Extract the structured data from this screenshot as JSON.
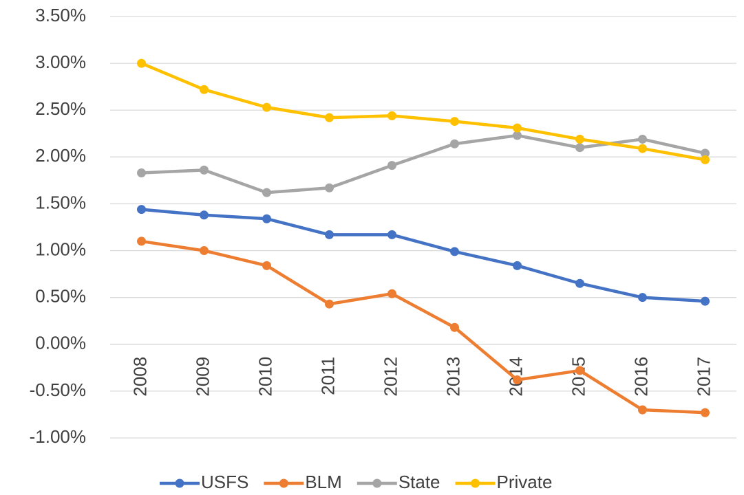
{
  "chart_data": {
    "type": "line",
    "categories": [
      "2008",
      "2009",
      "2010",
      "2011",
      "2012",
      "2013",
      "2014",
      "2015",
      "2016",
      "2017"
    ],
    "series": [
      {
        "name": "USFS",
        "color": "#4472c4",
        "values": [
          1.44,
          1.38,
          1.34,
          1.17,
          1.17,
          0.99,
          0.84,
          0.65,
          0.5,
          0.46
        ]
      },
      {
        "name": "BLM",
        "color": "#ed7d31",
        "values": [
          1.1,
          1.0,
          0.84,
          0.43,
          0.54,
          0.18,
          -0.38,
          -0.28,
          -0.7,
          -0.73
        ]
      },
      {
        "name": "State",
        "color": "#a5a5a5",
        "values": [
          1.83,
          1.86,
          1.62,
          1.67,
          1.91,
          2.14,
          2.23,
          2.1,
          2.19,
          2.04
        ]
      },
      {
        "name": "Private",
        "color": "#ffc000",
        "values": [
          3.0,
          2.72,
          2.53,
          2.42,
          2.44,
          2.38,
          2.31,
          2.19,
          2.09,
          1.97
        ]
      }
    ],
    "ylim": [
      -1,
      3.5
    ],
    "yticks": [
      {
        "value": -1,
        "label": "-1.00%"
      },
      {
        "value": -0.5,
        "label": "-0.50%"
      },
      {
        "value": 0,
        "label": "0.00%"
      },
      {
        "value": 0.5,
        "label": "0.50%"
      },
      {
        "value": 1,
        "label": "1.00%"
      },
      {
        "value": 1.5,
        "label": "1.50%"
      },
      {
        "value": 2,
        "label": "2.00%"
      },
      {
        "value": 2.5,
        "label": "2.50%"
      },
      {
        "value": 3,
        "label": "3.00%"
      },
      {
        "value": 3.5,
        "label": "3.50%"
      }
    ],
    "grid": true,
    "legend": "bottom"
  }
}
